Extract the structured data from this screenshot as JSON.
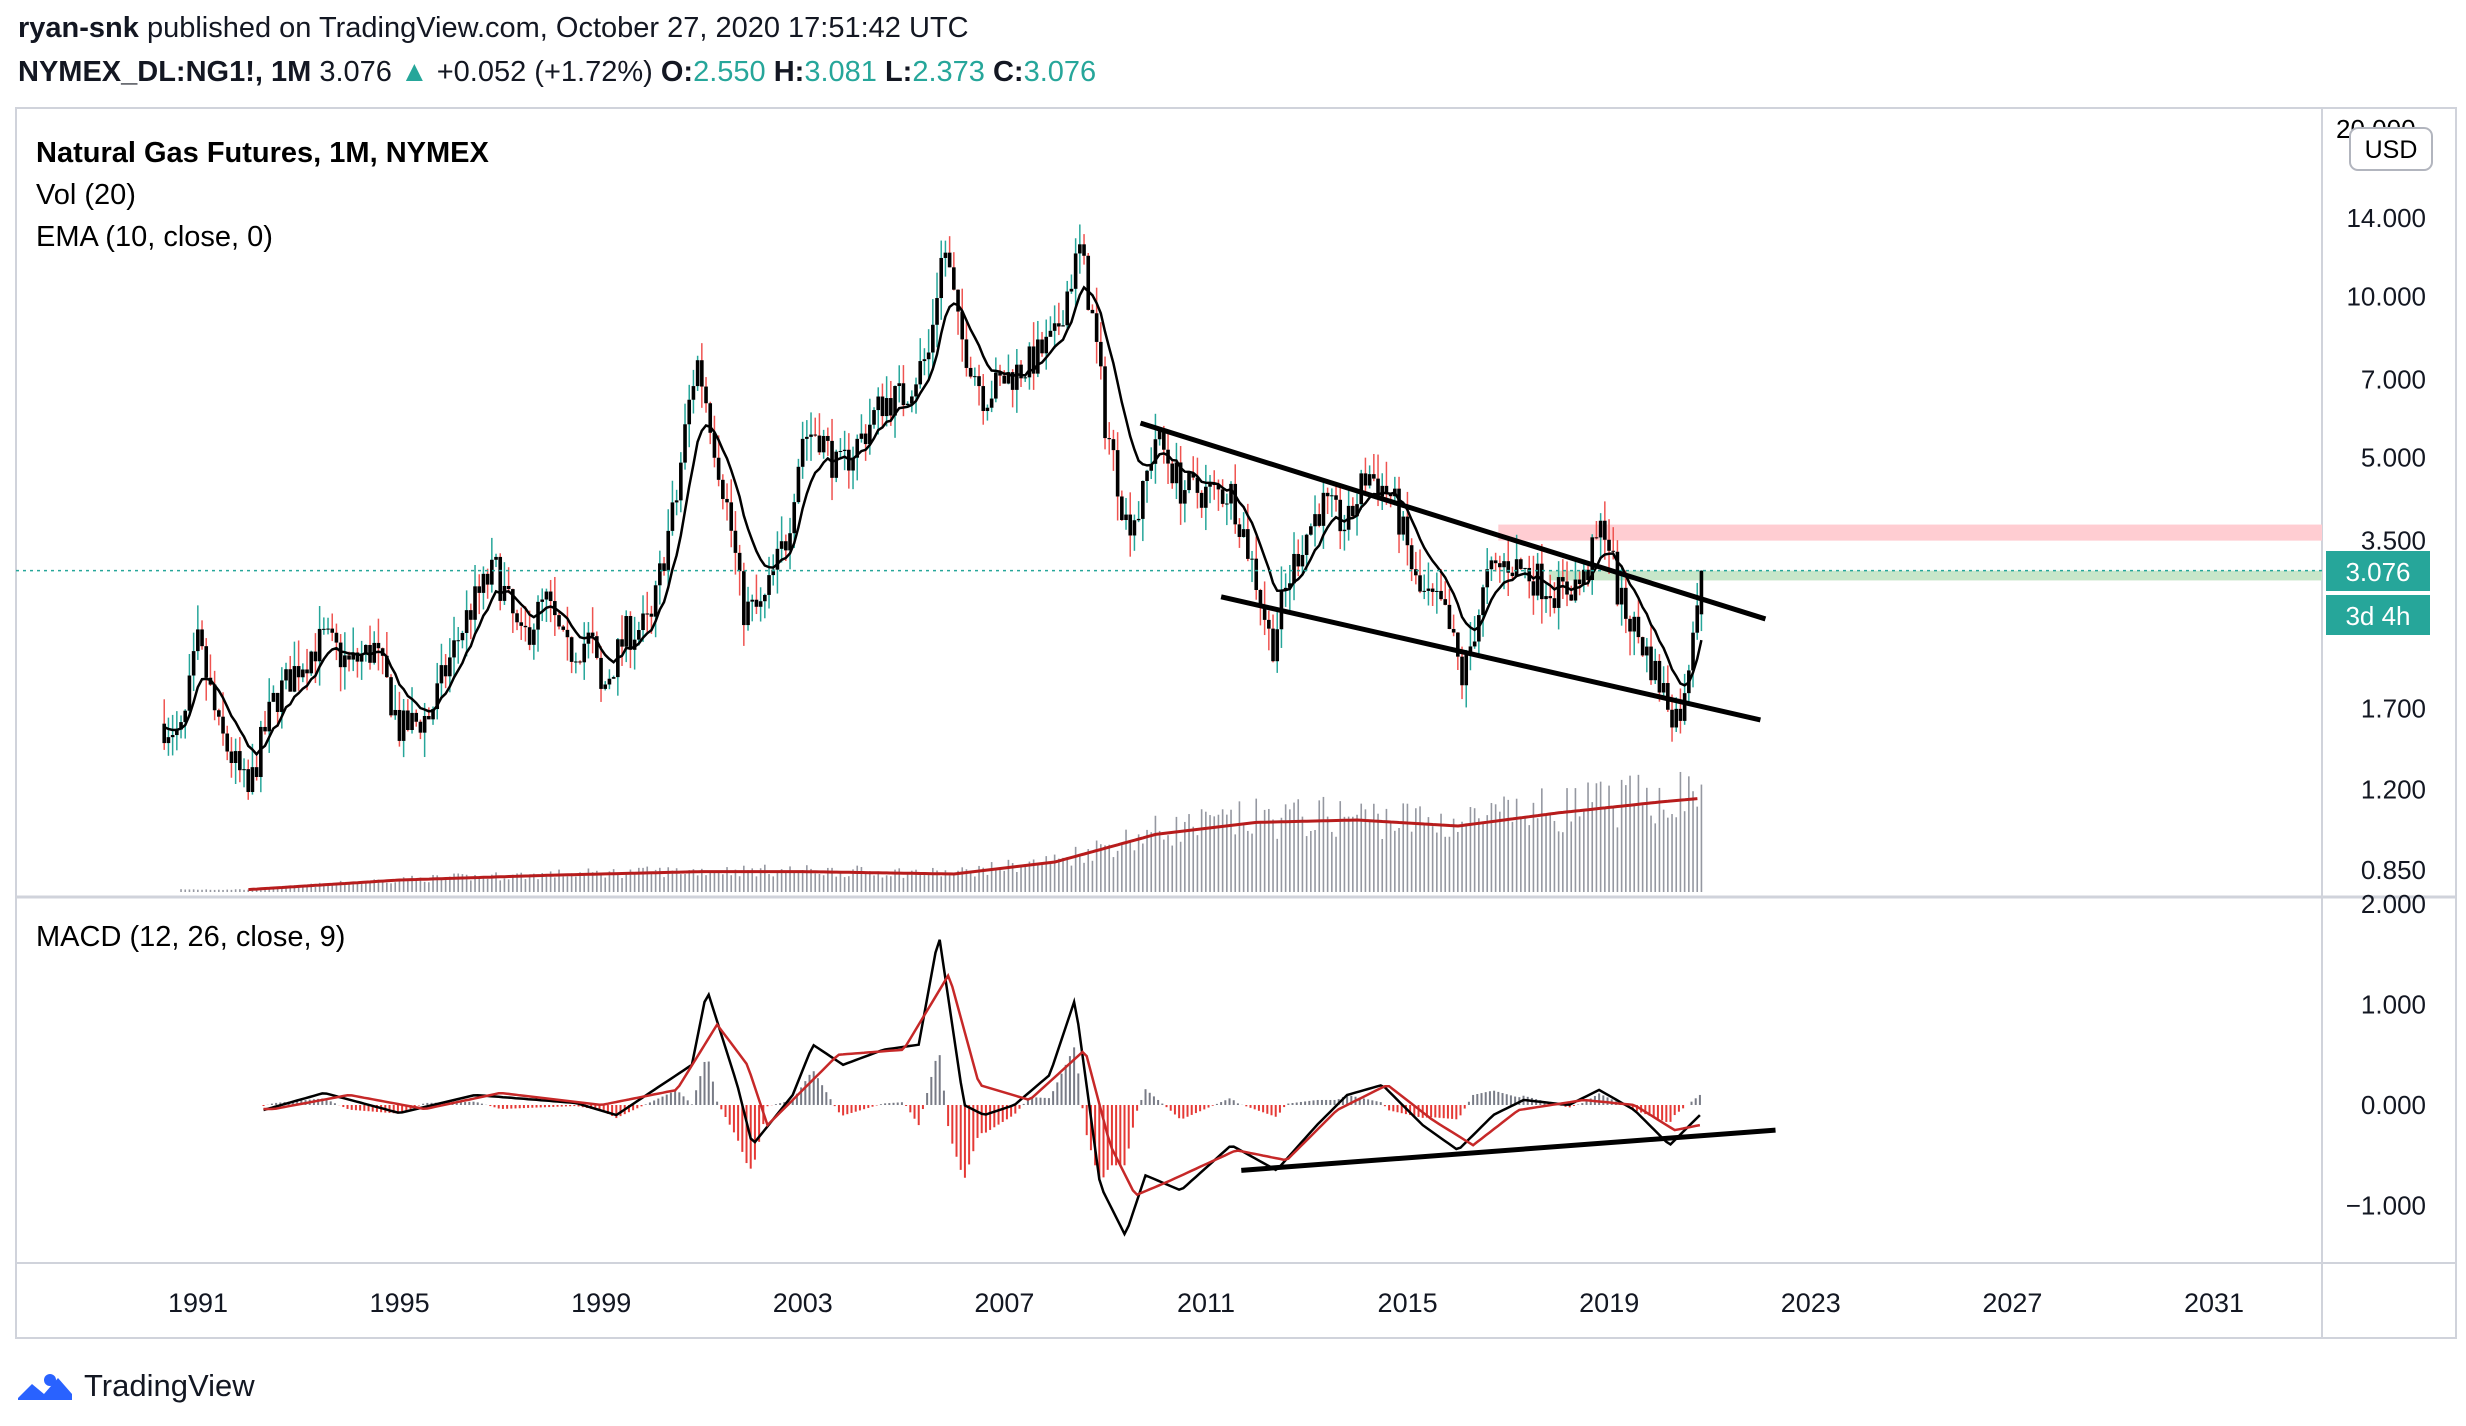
{
  "header": {
    "author": "ryan-snk",
    "published_text": "published on TradingView.com, October 27, 2020 17:51:42 UTC",
    "symbol": "NYMEX_DL:NG1!, 1M",
    "last": "3.076",
    "change": "+0.052 (+1.72%)",
    "o_label": "O:",
    "o_value": "2.550",
    "h_label": "H:",
    "h_value": "3.081",
    "l_label": "L:",
    "l_value": "2.373",
    "c_label": "C:",
    "c_value": "3.076"
  },
  "legend": {
    "title": "Natural Gas Futures, 1M, NYMEX",
    "vol": "Vol (20)",
    "ema": "EMA (10, close, 0)",
    "macd": "MACD (12, 26, close, 9)"
  },
  "price_axis": {
    "currency_button": "USD",
    "ticks": [
      "14.000",
      "10.000",
      "7.000",
      "5.000",
      "3.500",
      "1.700",
      "1.200",
      "0.850"
    ],
    "top_cut_label": "20.000",
    "last_price_label": "3.076",
    "countdown_label": "3d 4h"
  },
  "macd_axis": {
    "ticks": [
      "2.000",
      "1.000",
      "0.000",
      "−1.000"
    ]
  },
  "time_axis": {
    "ticks": [
      "1991",
      "1995",
      "1999",
      "2003",
      "2007",
      "2011",
      "2015",
      "2019",
      "2023",
      "2027",
      "2031"
    ]
  },
  "footer": {
    "brand": "TradingView"
  },
  "colors": {
    "up": "#26a69a",
    "down": "#ef5350",
    "candle_body": "#000000",
    "ema": "#000000",
    "vol_ma": "#b71c1c",
    "macd_line": "#000000",
    "signal_line": "#c62828",
    "resistance_zone": "#ffcdd2",
    "support_zone": "#c8e6c9",
    "last_price_bg": "#26a69a"
  },
  "chart_data": {
    "type": "candlestick",
    "interval": "1M",
    "scale": "log",
    "y_axis_ticks": [
      14.0,
      10.0,
      7.0,
      5.0,
      3.5,
      1.7,
      1.2,
      0.85
    ],
    "x_axis_ticks": [
      1991,
      1995,
      1999,
      2003,
      2007,
      2011,
      2015,
      2019,
      2023,
      2027,
      2031
    ],
    "last": {
      "open": 2.55,
      "high": 3.081,
      "low": 2.373,
      "close": 3.076
    },
    "price_path": [
      [
        1990.3,
        1.6
      ],
      [
        1990.7,
        1.52
      ],
      [
        1991.0,
        2.25
      ],
      [
        1991.4,
        1.55
      ],
      [
        1992.0,
        1.17
      ],
      [
        1992.5,
        1.75
      ],
      [
        1993.0,
        2.05
      ],
      [
        1993.5,
        2.3
      ],
      [
        1994.0,
        2.05
      ],
      [
        1994.5,
        2.2
      ],
      [
        1995.0,
        1.55
      ],
      [
        1995.6,
        1.65
      ],
      [
        1996.0,
        2.1
      ],
      [
        1996.4,
        2.6
      ],
      [
        1996.9,
        3.1
      ],
      [
        1997.4,
        2.25
      ],
      [
        1997.9,
        2.7
      ],
      [
        1998.3,
        2.15
      ],
      [
        1998.8,
        2.3
      ],
      [
        1999.0,
        1.8
      ],
      [
        1999.5,
        2.35
      ],
      [
        2000.0,
        2.45
      ],
      [
        2000.5,
        4.2
      ],
      [
        2000.9,
        7.6
      ],
      [
        2001.3,
        5.0
      ],
      [
        2001.8,
        2.6
      ],
      [
        2002.2,
        2.6
      ],
      [
        2002.7,
        3.6
      ],
      [
        2003.0,
        5.5
      ],
      [
        2003.3,
        5.6
      ],
      [
        2003.7,
        4.7
      ],
      [
        2004.2,
        5.5
      ],
      [
        2004.6,
        6.4
      ],
      [
        2005.0,
        6.5
      ],
      [
        2005.5,
        7.8
      ],
      [
        2005.8,
        12.5
      ],
      [
        2006.1,
        8.5
      ],
      [
        2006.6,
        6.5
      ],
      [
        2007.0,
        7.0
      ],
      [
        2007.5,
        7.5
      ],
      [
        2008.0,
        8.3
      ],
      [
        2008.5,
        12.2
      ],
      [
        2009.0,
        5.8
      ],
      [
        2009.4,
        3.8
      ],
      [
        2009.7,
        4.0
      ],
      [
        2010.0,
        5.5
      ],
      [
        2010.5,
        4.4
      ],
      [
        2011.0,
        4.3
      ],
      [
        2011.5,
        4.3
      ],
      [
        2011.9,
        3.2
      ],
      [
        2012.3,
        2.2
      ],
      [
        2012.8,
        3.3
      ],
      [
        2013.3,
        4.1
      ],
      [
        2013.8,
        3.7
      ],
      [
        2014.2,
        4.7
      ],
      [
        2014.7,
        4.2
      ],
      [
        2015.2,
        2.8
      ],
      [
        2015.7,
        2.6
      ],
      [
        2016.1,
        1.9
      ],
      [
        2016.6,
        3.0
      ],
      [
        2017.0,
        3.2
      ],
      [
        2017.5,
        3.0
      ],
      [
        2018.0,
        2.8
      ],
      [
        2018.5,
        2.95
      ],
      [
        2018.9,
        3.8
      ],
      [
        2019.2,
        2.7
      ],
      [
        2019.6,
        2.3
      ],
      [
        2020.0,
        1.9
      ],
      [
        2020.3,
        1.65
      ],
      [
        2020.5,
        1.75
      ],
      [
        2020.8,
        3.076
      ]
    ],
    "volume_ma_path": [
      [
        1992.0,
        0.02
      ],
      [
        1995.0,
        0.1
      ],
      [
        1998.0,
        0.14
      ],
      [
        2001.0,
        0.17
      ],
      [
        2003.0,
        0.17
      ],
      [
        2006.0,
        0.15
      ],
      [
        2008.0,
        0.25
      ],
      [
        2010.0,
        0.48
      ],
      [
        2012.0,
        0.58
      ],
      [
        2014.0,
        0.6
      ],
      [
        2016.0,
        0.55
      ],
      [
        2018.0,
        0.66
      ],
      [
        2020.0,
        0.75
      ],
      [
        2020.8,
        0.78
      ]
    ],
    "macd_path": [
      [
        1992.3,
        -0.05
      ],
      [
        1993.5,
        0.12
      ],
      [
        1995.0,
        -0.08
      ],
      [
        1996.5,
        0.1
      ],
      [
        1998.5,
        0.02
      ],
      [
        1999.3,
        -0.1
      ],
      [
        2000.8,
        0.4
      ],
      [
        2001.1,
        1.15
      ],
      [
        2001.7,
        0.2
      ],
      [
        2002.0,
        -0.4
      ],
      [
        2002.8,
        0.1
      ],
      [
        2003.2,
        0.6
      ],
      [
        2003.8,
        0.4
      ],
      [
        2004.6,
        0.55
      ],
      [
        2005.3,
        0.6
      ],
      [
        2005.7,
        1.7
      ],
      [
        2006.2,
        0.0
      ],
      [
        2006.6,
        -0.1
      ],
      [
        2007.2,
        0.0
      ],
      [
        2007.9,
        0.3
      ],
      [
        2008.4,
        1.05
      ],
      [
        2008.9,
        -0.8
      ],
      [
        2009.4,
        -1.3
      ],
      [
        2009.8,
        -0.7
      ],
      [
        2010.5,
        -0.85
      ],
      [
        2011.5,
        -0.4
      ],
      [
        2012.4,
        -0.65
      ],
      [
        2013.2,
        -0.2
      ],
      [
        2013.8,
        0.1
      ],
      [
        2014.5,
        0.2
      ],
      [
        2015.3,
        -0.2
      ],
      [
        2016.0,
        -0.45
      ],
      [
        2016.7,
        -0.1
      ],
      [
        2017.3,
        0.05
      ],
      [
        2018.2,
        0.0
      ],
      [
        2018.8,
        0.15
      ],
      [
        2019.5,
        -0.05
      ],
      [
        2020.2,
        -0.4
      ],
      [
        2020.8,
        -0.1
      ]
    ],
    "signal_path": [
      [
        1992.5,
        -0.04
      ],
      [
        1994.0,
        0.1
      ],
      [
        1995.5,
        -0.04
      ],
      [
        1997.0,
        0.12
      ],
      [
        1999.0,
        0.0
      ],
      [
        2000.5,
        0.15
      ],
      [
        2001.3,
        0.8
      ],
      [
        2001.9,
        0.4
      ],
      [
        2002.3,
        -0.2
      ],
      [
        2003.1,
        0.2
      ],
      [
        2003.7,
        0.5
      ],
      [
        2005.0,
        0.55
      ],
      [
        2005.9,
        1.3
      ],
      [
        2006.5,
        0.2
      ],
      [
        2007.5,
        0.05
      ],
      [
        2008.6,
        0.55
      ],
      [
        2009.1,
        -0.4
      ],
      [
        2009.6,
        -0.9
      ],
      [
        2010.3,
        -0.75
      ],
      [
        2011.6,
        -0.45
      ],
      [
        2012.6,
        -0.55
      ],
      [
        2013.6,
        -0.05
      ],
      [
        2014.6,
        0.2
      ],
      [
        2015.5,
        -0.15
      ],
      [
        2016.3,
        -0.4
      ],
      [
        2017.2,
        -0.05
      ],
      [
        2018.5,
        0.05
      ],
      [
        2019.5,
        0.0
      ],
      [
        2020.3,
        -0.25
      ],
      [
        2020.8,
        -0.2
      ]
    ],
    "trendlines": [
      {
        "panel": "price",
        "points": [
          [
            2009.7,
            5.8
          ],
          [
            2022.1,
            2.5
          ]
        ]
      },
      {
        "panel": "price",
        "points": [
          [
            2011.3,
            2.75
          ],
          [
            2022.0,
            1.62
          ]
        ]
      },
      {
        "panel": "macd",
        "points": [
          [
            2011.7,
            -0.65
          ],
          [
            2022.3,
            -0.25
          ]
        ]
      }
    ],
    "zones": [
      {
        "name": "resistance",
        "from_year": 2016.8,
        "y_low": 3.5,
        "y_high": 3.75
      },
      {
        "name": "support",
        "from_year": 2017.8,
        "y_low": 2.95,
        "y_high": 3.076
      }
    ]
  }
}
